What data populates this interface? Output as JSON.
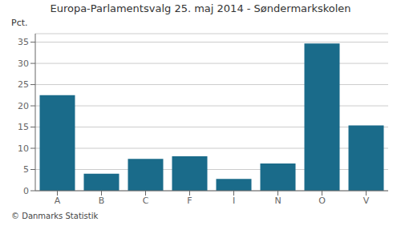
{
  "chart_data": {
    "type": "bar",
    "title": "Europa-Parlamentsvalg 25. maj 2014 - Søndermarkskolen",
    "categories": [
      "A",
      "B",
      "C",
      "F",
      "I",
      "N",
      "O",
      "V"
    ],
    "values": [
      22.5,
      4.0,
      7.5,
      8.1,
      2.8,
      6.4,
      34.7,
      15.4
    ],
    "color": "#1a6b8a",
    "ylabel": "Pct.",
    "ylim": [
      0,
      37
    ],
    "yticks": [
      0,
      5,
      10,
      15,
      20,
      25,
      30,
      35
    ],
    "grid": true,
    "annotations": [
      "© Danmarks Statistik"
    ]
  }
}
